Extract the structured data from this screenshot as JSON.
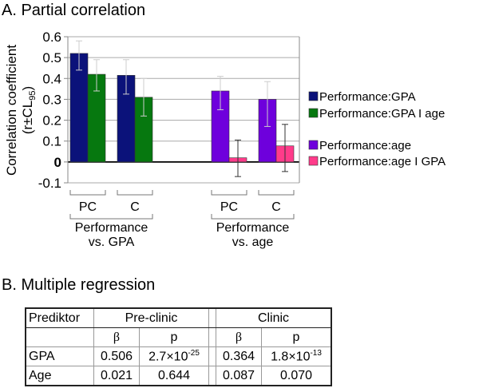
{
  "section_a_title": "A. Partial correlation",
  "section_b_title": "B. Multiple regression",
  "chart_data": {
    "type": "bar",
    "ylabel_line1": "Correlation coefficient",
    "ylabel_line2": "(r±CL",
    "ylabel_sub": "95",
    "ylabel_close": ")",
    "ylim": [
      -0.1,
      0.6
    ],
    "yticks": [
      "0.6",
      "0.5",
      "0.4",
      "0.3",
      "0.2",
      "0.1",
      "0",
      "-0.1"
    ],
    "grid": true,
    "legend_position": "right",
    "groups": [
      {
        "label_line1": "Performance",
        "label_line2": "vs. GPA",
        "categories": [
          "PC",
          "C"
        ]
      },
      {
        "label_line1": "Performance",
        "label_line2": "vs. age",
        "categories": [
          "PC",
          "C"
        ]
      }
    ],
    "series": [
      {
        "name": "Performance:GPA",
        "color": "#0b127a",
        "group": 0,
        "values": [
          0.52,
          0.415
        ],
        "ci_low": [
          0.44,
          0.325
        ],
        "ci_high": [
          0.58,
          0.49
        ]
      },
      {
        "name": "Performance:GPA I age",
        "color": "#06780f",
        "group": 0,
        "values": [
          0.42,
          0.31
        ],
        "ci_low": [
          0.34,
          0.22
        ],
        "ci_high": [
          0.49,
          0.4
        ]
      },
      {
        "name": "Performance:age",
        "color": "#6e00dc",
        "group": 1,
        "values": [
          0.34,
          0.3
        ],
        "ci_low": [
          0.25,
          0.17
        ],
        "ci_high": [
          0.41,
          0.385
        ]
      },
      {
        "name": "Performance:age I GPA",
        "color": "#ff3b8a",
        "group": 1,
        "values": [
          0.02,
          0.077
        ],
        "ci_low": [
          -0.07,
          -0.046
        ],
        "ci_high": [
          0.105,
          0.18
        ]
      }
    ]
  },
  "table": {
    "header": [
      "Prediktor",
      "Pre-clinic",
      "Clinic"
    ],
    "subheader": [
      "β",
      "p",
      "β",
      "p"
    ],
    "rows": [
      {
        "name": "GPA",
        "pre_beta": "0.506",
        "pre_p_base": "2.7×10",
        "pre_p_exp": "-25",
        "cl_beta": "0.364",
        "cl_p_base": "1.8×10",
        "cl_p_exp": "-13"
      },
      {
        "name": "Age",
        "pre_beta": "0.021",
        "pre_p": "0.644",
        "cl_beta": "0.087",
        "cl_p": "0.070"
      }
    ]
  }
}
